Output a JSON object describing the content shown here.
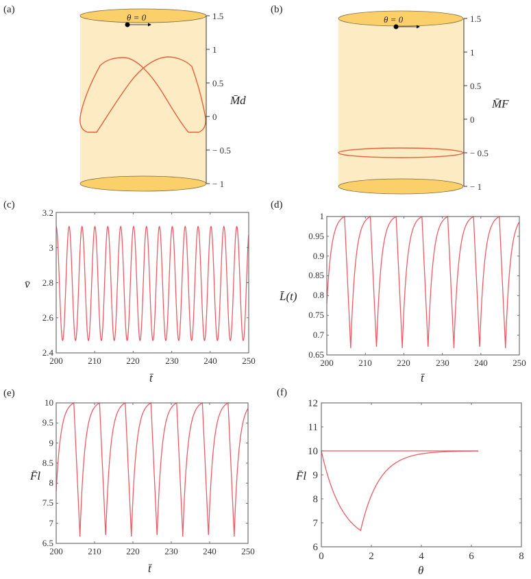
{
  "figure": {
    "panels": [
      "(a)",
      "(b)",
      "(c)",
      "(d)",
      "(e)",
      "(f)"
    ]
  },
  "colors": {
    "curve": "#ec5a66",
    "cylinder_body": "#fdebc4",
    "cylinder_cap": "#fbd06a",
    "frame": "#6e6e6e"
  },
  "chart_data": [
    {
      "panel": "(a)",
      "type": "line",
      "title": "",
      "annotation": "θ = 0",
      "ylabel": "M̄d",
      "yticks": [
        "1.5",
        "1",
        "0.5",
        "0",
        "− 0.5",
        "− 1"
      ],
      "ylim": [
        -1,
        1.5
      ],
      "description": "Closed red trajectory on an unrolled cylinder surface, two crossing arches peaking near 0.85 with lower flat segments near -0.15",
      "curve_points_approx": [
        [
          0,
          -0.1
        ],
        [
          0.2,
          0.75
        ],
        [
          0.35,
          0.85
        ],
        [
          0.5,
          0.72
        ],
        [
          0.9,
          -0.15
        ],
        [
          1.0,
          -0.15
        ]
      ]
    },
    {
      "panel": "(b)",
      "type": "line",
      "title": "",
      "annotation": "θ = 0",
      "ylabel": "M̄F",
      "yticks": [
        "1.5",
        "1",
        "0.5",
        "0",
        "− 0.5",
        "− 1"
      ],
      "ylim": [
        -1,
        1.5
      ],
      "description": "Red circular trajectory at constant M̄F = -0.5 on a cylinder"
    },
    {
      "panel": "(c)",
      "type": "line",
      "xlabel": "t̄",
      "ylabel": "v̄",
      "xticks": [
        "200",
        "210",
        "220",
        "230",
        "240",
        "250"
      ],
      "yticks": [
        "2.4",
        "2.6",
        "2.8",
        "3",
        "3.2"
      ],
      "xlim": [
        200,
        250
      ],
      "ylim": [
        2.4,
        3.2
      ],
      "series": [
        {
          "name": "v",
          "period": 3.35,
          "max": 3.12,
          "min": 2.47
        }
      ]
    },
    {
      "panel": "(d)",
      "type": "line",
      "xlabel": "t̄",
      "ylabel": "L̄(t)",
      "xticks": [
        "200",
        "210",
        "220",
        "230",
        "240",
        "250"
      ],
      "yticks": [
        "0.65",
        "0.7",
        "0.75",
        "0.8",
        "0.85",
        "0.9",
        "0.95",
        "1"
      ],
      "xlim": [
        200,
        250
      ],
      "ylim": [
        0.65,
        1
      ],
      "series": [
        {
          "name": "L",
          "period": 6.7,
          "max": 1.0,
          "min": 0.667,
          "peaks_at": [
            204.6,
            211.3,
            218.0,
            224.7,
            231.4,
            238.1,
            244.8
          ],
          "troughs_at": [
            206.2,
            212.9,
            219.6,
            226.3,
            233.0,
            239.7,
            246.4
          ]
        }
      ]
    },
    {
      "panel": "(e)",
      "type": "line",
      "xlabel": "t̄",
      "ylabel": "F̄l",
      "xticks": [
        "200",
        "210",
        "220",
        "230",
        "240",
        "250"
      ],
      "yticks": [
        "6.5",
        "7",
        "7.5",
        "8",
        "8.5",
        "9",
        "9.5",
        "10"
      ],
      "xlim": [
        200,
        250
      ],
      "ylim": [
        6.5,
        10
      ],
      "series": [
        {
          "name": "Fl",
          "period": 6.7,
          "max": 10.0,
          "min": 6.67,
          "peaks_at": [
            204.6,
            211.3,
            218.0,
            224.7,
            231.4,
            238.1,
            244.8
          ],
          "troughs_at": [
            206.2,
            212.9,
            219.6,
            226.3,
            233.0,
            239.7,
            246.4
          ]
        }
      ]
    },
    {
      "panel": "(f)",
      "type": "line",
      "xlabel": "θ",
      "ylabel": "F̄l",
      "xticks": [
        "0",
        "2",
        "4",
        "6",
        "8"
      ],
      "yticks": [
        "6",
        "7",
        "8",
        "9",
        "10",
        "11",
        "12"
      ],
      "xlim": [
        0,
        8
      ],
      "ylim": [
        6,
        12
      ],
      "series": [
        {
          "name": "upper",
          "x": [
            0,
            6.28
          ],
          "y": [
            10,
            10
          ]
        },
        {
          "name": "lower",
          "x": [
            0,
            0.5,
            1.0,
            1.57,
            2.0,
            3.0,
            4.0,
            5.0,
            6.28
          ],
          "y": [
            10,
            8.6,
            7.5,
            6.68,
            7.9,
            9.2,
            9.75,
            9.93,
            10
          ]
        }
      ]
    }
  ]
}
